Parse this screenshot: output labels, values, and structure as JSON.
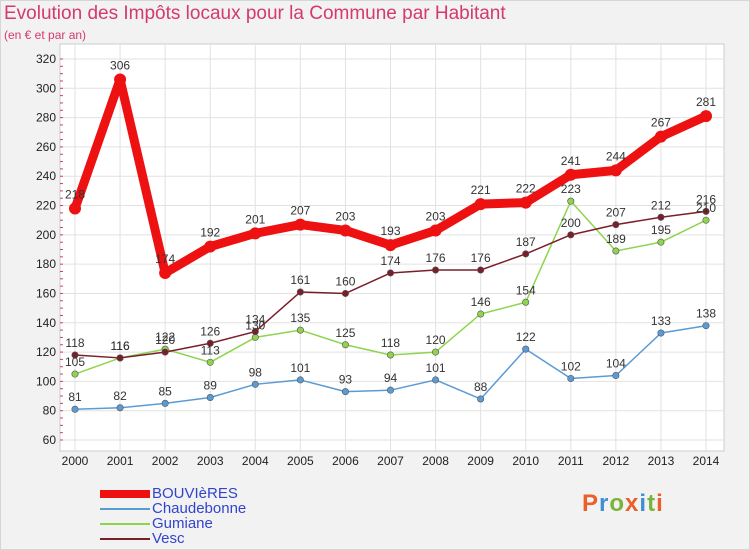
{
  "header": {
    "title": "Evolution des Impôts locaux pour la Commune par Habitant",
    "subtitle": "(en € et par an)"
  },
  "logo": {
    "text": "Proxiti",
    "colors": [
      "#e8602c",
      "#3f8fd4",
      "#79b53a",
      "#e8602c",
      "#3f8fd4",
      "#79b53a",
      "#e8602c"
    ]
  },
  "chart_data": {
    "type": "line",
    "title": "Evolution des Impôts locaux pour la Commune par Habitant",
    "subtitle": "(en € et par an)",
    "xlabel": "",
    "ylabel": "",
    "x": [
      2000,
      2001,
      2002,
      2003,
      2004,
      2005,
      2006,
      2007,
      2008,
      2009,
      2010,
      2011,
      2012,
      2013,
      2014
    ],
    "yticks": [
      60,
      80,
      100,
      120,
      140,
      160,
      180,
      200,
      220,
      240,
      260,
      280,
      300,
      320
    ],
    "ylim": [
      60,
      320
    ],
    "grid": true,
    "legend_position": "bottom-left",
    "series": [
      {
        "name": "BOUVIèRES",
        "color": "#ee1111",
        "width": 9,
        "marker": 6,
        "values": [
          218,
          306,
          174,
          192,
          201,
          207,
          203,
          193,
          203,
          221,
          222,
          241,
          244,
          267,
          281
        ],
        "labels": [
          "218",
          "306",
          "174",
          "192",
          "201",
          "207",
          "203",
          "193",
          "203",
          "221",
          "222",
          "241",
          "244",
          "267",
          "281"
        ]
      },
      {
        "name": "Chaudebonne",
        "color": "#5b9bd5",
        "width": 1.5,
        "marker": 3.2,
        "values": [
          81,
          82,
          85,
          89,
          98,
          101,
          93,
          94,
          101,
          88,
          122,
          102,
          104,
          133,
          138
        ],
        "labels": [
          "81",
          "82",
          "85",
          "89",
          "98",
          "101",
          "93",
          "94",
          "101",
          "88",
          "122",
          "102",
          "104",
          "133",
          "138"
        ]
      },
      {
        "name": "Gumiane",
        "color": "#8fd44e",
        "width": 1.5,
        "marker": 3.2,
        "values": [
          105,
          116,
          122,
          113,
          130,
          135,
          125,
          118,
          120,
          146,
          154,
          223,
          189,
          195,
          210
        ],
        "labels": [
          "105",
          "116",
          "122",
          "113",
          "130",
          "135",
          "125",
          "118",
          "120",
          "146",
          "154",
          "223",
          "189",
          "195",
          "210"
        ]
      },
      {
        "name": "Vesc",
        "color": "#7a1f2a",
        "width": 1.5,
        "marker": 3.2,
        "values": [
          118,
          116,
          120,
          126,
          134,
          161,
          160,
          174,
          176,
          176,
          187,
          200,
          207,
          212,
          216
        ],
        "labels": [
          "118",
          "116",
          "120",
          "126",
          "134",
          "161",
          "160",
          "174",
          "176",
          "176",
          "187",
          "200",
          "207",
          "212",
          "216"
        ]
      }
    ]
  }
}
